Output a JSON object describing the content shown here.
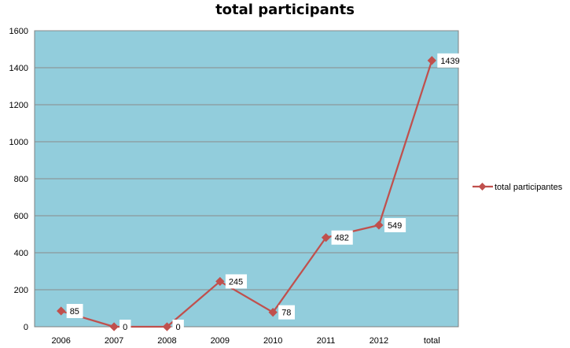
{
  "chart_data": {
    "type": "line",
    "title": "total participants",
    "categories": [
      "2006",
      "2007",
      "2008",
      "2009",
      "2010",
      "2011",
      "2012",
      "total"
    ],
    "series": [
      {
        "name": "total participantes",
        "values": [
          85,
          0,
          0,
          245,
          78,
          482,
          549,
          1439
        ],
        "color": "#c0504d"
      }
    ],
    "ylim": [
      0,
      1600
    ],
    "yticks": [
      "0",
      "200",
      "400",
      "600",
      "800",
      "1000",
      "1200",
      "1400",
      "1600"
    ],
    "grid": true,
    "legend": "right",
    "plot_background": "#92cddc",
    "data_labels": [
      "85",
      "0",
      "0",
      "245",
      "78",
      "482",
      "549",
      "1439"
    ]
  }
}
